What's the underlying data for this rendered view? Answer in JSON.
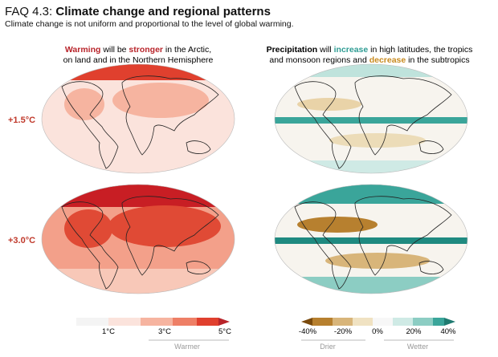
{
  "header": {
    "label": "FAQ 4.3:",
    "title": "Climate change and regional patterns",
    "subtitle": "Climate change is not uniform and proportional to the level of global warming."
  },
  "left_heading": {
    "lines": [
      [
        {
          "text": "Warming",
          "style": "warm"
        },
        {
          "text": " will be ",
          "style": "plain"
        },
        {
          "text": "stronger",
          "style": "warm"
        },
        {
          "text": " in the Arctic,",
          "style": "plain"
        }
      ],
      [
        {
          "text": "on land and in the Northern Hemisphere",
          "style": "plain"
        }
      ]
    ]
  },
  "right_heading": {
    "lines": [
      [
        {
          "text": "Precipitation",
          "style": "bold"
        },
        {
          "text": " will ",
          "style": "plain"
        },
        {
          "text": "increase",
          "style": "wet"
        },
        {
          "text": " in high latitudes, the tropics",
          "style": "plain"
        }
      ],
      [
        {
          "text": "and monsoon regions and ",
          "style": "plain"
        },
        {
          "text": "decrease",
          "style": "dry"
        },
        {
          "text": " in the subtropics",
          "style": "plain"
        }
      ]
    ]
  },
  "rows": [
    "+1.5°C",
    "+3.0°C"
  ],
  "temperature_legend": {
    "ticks": [
      "1°C",
      "3°C",
      "5°C"
    ],
    "caption": "Warmer"
  },
  "precipitation_legend": {
    "ticks": [
      "-40%",
      "-20%",
      "0%",
      "20%",
      "40%"
    ],
    "captions": [
      "Drier",
      "Wetter"
    ]
  }
}
